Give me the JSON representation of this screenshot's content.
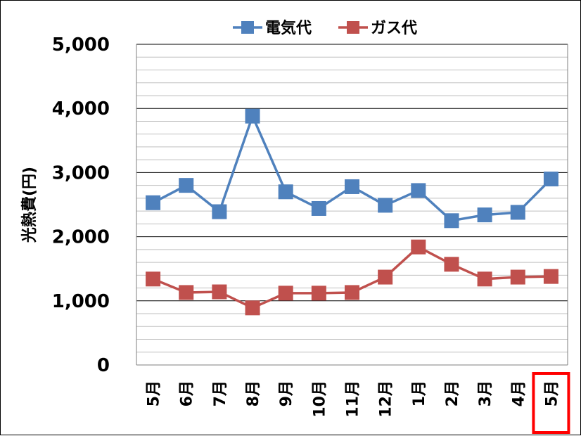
{
  "chart_data": {
    "type": "line",
    "title": "",
    "xlabel": "",
    "ylabel": "光熱費(円)",
    "ylim": [
      0,
      5000
    ],
    "y_ticks": [
      "0",
      "1,000",
      "2,000",
      "3,000",
      "4,000",
      "5,000"
    ],
    "y_tick_values": [
      0,
      1000,
      2000,
      3000,
      4000,
      5000
    ],
    "categories": [
      "5月",
      "6月",
      "7月",
      "8月",
      "9月",
      "10月",
      "11月",
      "12月",
      "1月",
      "2月",
      "3月",
      "4月",
      "5月"
    ],
    "highlighted_category_index": 12,
    "highlight_color": "#ff0000",
    "grid": true,
    "legend_position": "top",
    "series": [
      {
        "name": "電気代",
        "color": "#4f81bd",
        "values": [
          2530,
          2800,
          2390,
          3880,
          2700,
          2440,
          2780,
          2490,
          2720,
          2250,
          2340,
          2380,
          2900
        ]
      },
      {
        "name": "ガス代",
        "color": "#c0504d",
        "values": [
          1340,
          1130,
          1140,
          890,
          1120,
          1120,
          1130,
          1370,
          1840,
          1570,
          1340,
          1370,
          1380
        ]
      }
    ]
  }
}
